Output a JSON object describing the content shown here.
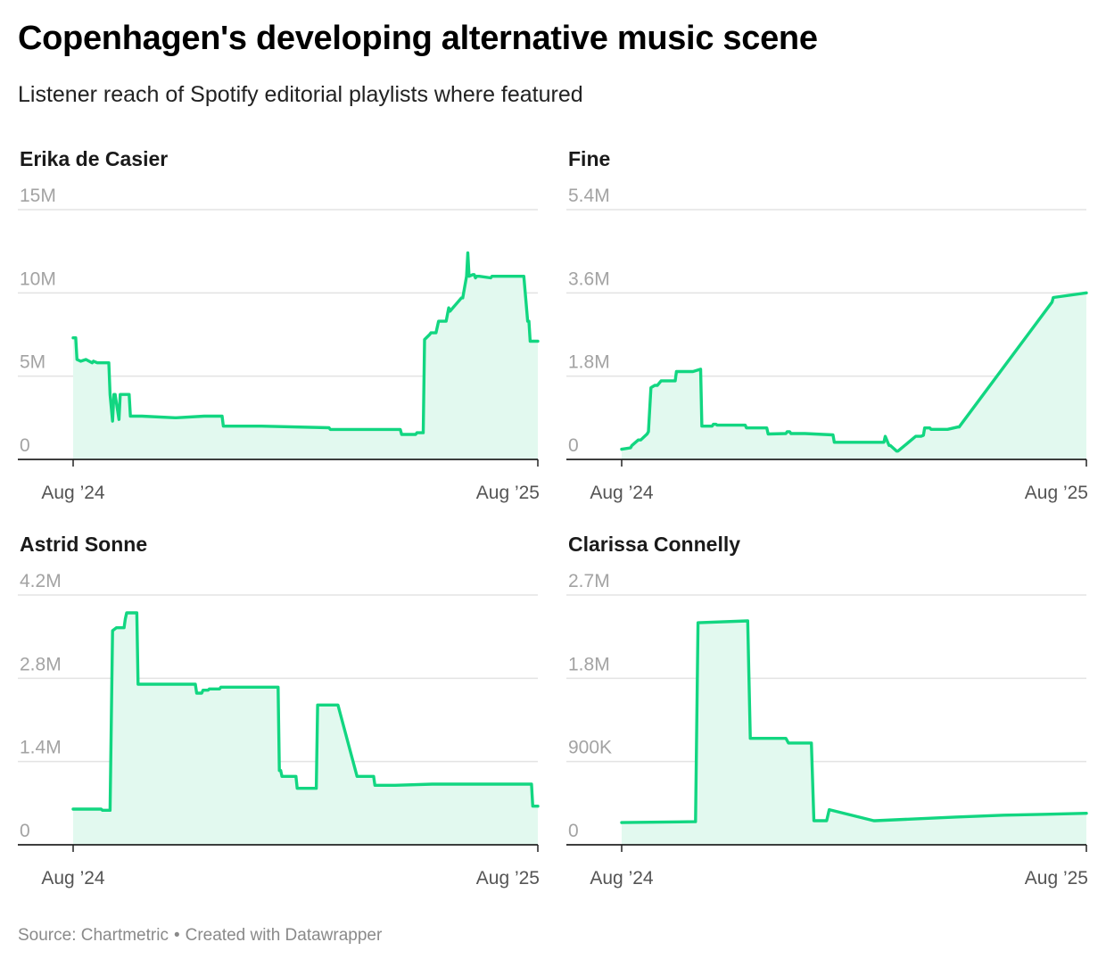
{
  "title": "Copenhagen's developing alternative music scene",
  "subtitle": "Listener reach of Spotify editorial playlists where featured",
  "footer": {
    "source": "Source: Chartmetric",
    "separator": "•",
    "credit": "Created with Datawrapper"
  },
  "colors": {
    "line": "#12d681",
    "area": "#e2f9ef",
    "grid": "#e3e3e3",
    "axis": "#222222",
    "tick": "#a3a3a3",
    "xtick": "#555555"
  },
  "chart_data": [
    {
      "type": "area",
      "title": "Erika de Casier",
      "xlim": [
        "2024-08-01",
        "2025-08-01"
      ],
      "ylim": [
        0,
        15000000
      ],
      "yticks": [
        0,
        5000000,
        10000000,
        15000000
      ],
      "ytick_labels": [
        "0",
        "5M",
        "10M",
        "15M"
      ],
      "xtick_labels": [
        "Aug ’24",
        "Aug ’25"
      ],
      "grid": true,
      "series": [
        {
          "x": [
            "2024-08-01",
            "2024-08-03",
            "2024-08-04",
            "2024-08-07",
            "2024-08-11",
            "2024-08-16",
            "2024-08-17",
            "2024-08-20",
            "2024-08-21",
            "2024-08-25",
            "2024-08-29",
            "2024-08-30",
            "2024-09-01",
            "2024-09-02",
            "2024-09-03",
            "2024-09-06",
            "2024-09-07",
            "2024-09-08",
            "2024-09-14",
            "2024-09-15",
            "2024-09-23",
            "2024-09-24",
            "2024-10-20",
            "2024-10-21",
            "2024-11-12",
            "2024-11-13",
            "2024-11-26",
            "2024-11-27",
            "2024-12-26",
            "2024-12-27",
            "2025-02-18",
            "2025-02-19",
            "2025-04-15",
            "2025-04-16",
            "2025-04-18",
            "2025-04-19",
            "2025-04-27",
            "2025-04-28",
            "2025-05-03",
            "2025-05-04",
            "2025-05-08",
            "2025-05-09",
            "2025-05-12",
            "2025-05-13",
            "2025-05-15",
            "2025-05-16",
            "2025-05-17",
            "2025-05-20",
            "2025-05-21",
            "2025-05-23",
            "2025-05-24",
            "2025-06-02",
            "2025-06-03",
            "2025-06-06",
            "2025-06-07",
            "2025-06-08",
            "2025-06-11",
            "2025-06-12",
            "2025-06-13",
            "2025-06-14",
            "2025-06-15",
            "2025-06-16",
            "2025-06-25",
            "2025-06-26",
            "2025-07-20",
            "2025-07-21",
            "2025-07-24",
            "2025-07-25",
            "2025-07-26",
            "2025-08-01"
          ],
          "y": [
            7300000,
            7300000,
            6000000,
            5900000,
            6000000,
            5800000,
            5900000,
            5800000,
            5800000,
            5800000,
            5800000,
            3900000,
            2300000,
            3900000,
            3900000,
            2400000,
            3900000,
            3900000,
            3900000,
            2600000,
            2600000,
            2600000,
            2500000,
            2500000,
            2600000,
            2600000,
            2600000,
            2000000,
            2000000,
            2000000,
            1900000,
            1800000,
            1800000,
            1500000,
            1500000,
            1500000,
            1500000,
            1600000,
            1600000,
            7200000,
            7500000,
            7600000,
            7600000,
            7600000,
            8300000,
            8300000,
            8300000,
            8300000,
            8300000,
            9100000,
            8900000,
            9700000,
            9700000,
            11000000,
            12400000,
            11000000,
            11100000,
            11100000,
            10900000,
            11000000,
            11000000,
            11000000,
            10900000,
            11000000,
            11000000,
            11000000,
            8300000,
            8300000,
            7100000,
            7100000
          ],
          "_note": ""
        }
      ]
    },
    {
      "type": "area",
      "title": "Fine",
      "xlim": [
        "2024-08-01",
        "2025-08-01"
      ],
      "ylim": [
        0,
        5400000
      ],
      "yticks": [
        0,
        1800000,
        3600000,
        5400000
      ],
      "ytick_labels": [
        "0",
        "1.8M",
        "3.6M",
        "5.4M"
      ],
      "xtick_labels": [
        "Aug ’24",
        "Aug ’25"
      ],
      "grid": true,
      "series": [
        {
          "x": [
            "2024-08-01",
            "2024-08-08",
            "2024-08-09",
            "2024-08-14",
            "2024-08-16",
            "2024-08-21",
            "2024-08-22",
            "2024-08-24",
            "2024-08-27",
            "2024-08-29",
            "2024-09-01",
            "2024-09-02",
            "2024-09-10",
            "2024-09-12",
            "2024-09-13",
            "2024-09-26",
            "2024-10-02",
            "2024-10-03",
            "2024-10-11",
            "2024-10-12",
            "2024-10-14",
            "2024-10-15",
            "2024-11-06",
            "2024-11-07",
            "2024-11-23",
            "2024-11-24",
            "2024-12-08",
            "2024-12-09",
            "2024-12-11",
            "2024-12-12",
            "2024-12-16",
            "2024-12-17",
            "2024-12-22",
            "2024-12-23",
            "2025-01-14",
            "2025-01-15",
            "2025-02-23",
            "2025-02-24",
            "2025-02-27",
            "2025-02-28",
            "2025-03-05",
            "2025-03-06",
            "2025-03-20",
            "2025-03-21",
            "2025-03-23",
            "2025-03-24",
            "2025-03-26",
            "2025-03-27",
            "2025-03-31",
            "2025-04-01",
            "2025-04-05",
            "2025-04-06",
            "2025-04-13",
            "2025-04-14",
            "2025-04-22",
            "2025-04-23",
            "2025-07-05",
            "2025-07-06",
            "2025-08-01"
          ],
          "y": [
            220000,
            250000,
            300000,
            420000,
            420000,
            550000,
            600000,
            1550000,
            1600000,
            1600000,
            1700000,
            1700000,
            1700000,
            1700000,
            1900000,
            1900000,
            1950000,
            720000,
            720000,
            760000,
            760000,
            740000,
            740000,
            680000,
            680000,
            550000,
            560000,
            600000,
            600000,
            560000,
            560000,
            560000,
            560000,
            560000,
            530000,
            370000,
            370000,
            500000,
            300000,
            300000,
            180000,
            180000,
            500000,
            500000,
            500000,
            500000,
            520000,
            680000,
            680000,
            650000,
            650000,
            650000,
            650000,
            650000,
            700000,
            700000,
            3400000,
            3500000,
            3600000
          ],
          "_note": ""
        }
      ]
    }
  ]
}
